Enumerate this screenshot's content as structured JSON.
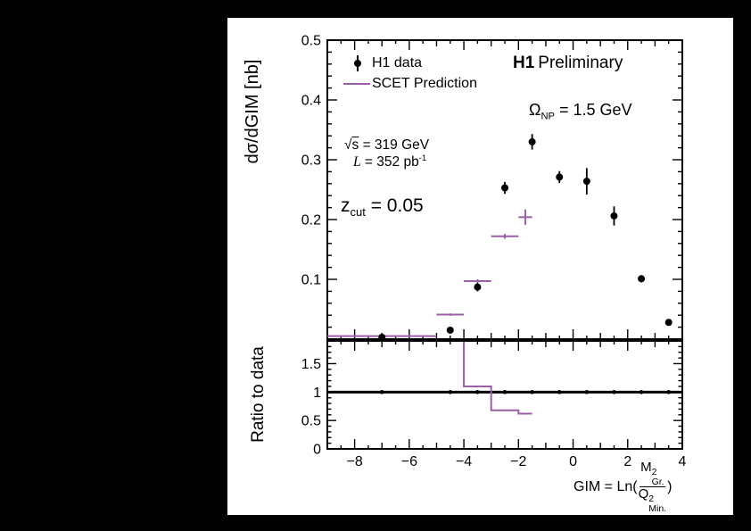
{
  "colors": {
    "background": "#000000",
    "canvas": "#ffffff",
    "data_points": "#000000",
    "scet_line": "#9a5fa5"
  },
  "titles": {
    "experiment": "H1",
    "status": "Preliminary"
  },
  "legend": {
    "data_label": "H1 data",
    "scet_label": "SCET Prediction"
  },
  "annotations": {
    "omega_symbol": "Ω",
    "omega_sub": "NP",
    "omega_value": " = 1.5 GeV",
    "sqrt_symbol": "√",
    "sqrt_arg": "s",
    "sqrt_value": " = 319 GeV",
    "lumi_symbol": "L",
    "lumi_value": " = 352 pb",
    "lumi_sup": "-1",
    "zcut_symbol": "z",
    "zcut_sub": "cut",
    "zcut_value": " = 0.05"
  },
  "xaxis_label": {
    "prefix": "GIM = Ln(",
    "num_base": "M",
    "num_sup": "2",
    "num_sub": "Gr.",
    "den_base": "Q",
    "den_sup": "2",
    "den_sub": "Min.",
    "suffix": ")"
  },
  "chart_data": {
    "type": "scatter",
    "title": "H1 Preliminary",
    "xlabel": "GIM = Ln(M^2_Gr. / Q^2_Min.)",
    "ylabel": "dσ/dGIM [nb]",
    "xlim": [
      -9,
      4
    ],
    "main_ylim": [
      0,
      0.5
    ],
    "xticks": {
      "major": [
        -8,
        -6,
        -4,
        -2,
        0,
        2,
        4
      ],
      "labels": [
        "−8",
        "−6",
        "−4",
        "−2",
        "0",
        "2",
        "4"
      ],
      "medium_step": 1,
      "minor_step": 0.5
    },
    "main_yticks": {
      "major": [
        0.1,
        0.2,
        0.3,
        0.4,
        0.5
      ],
      "labels": [
        "0.1",
        "0.2",
        "0.3",
        "0.4",
        "0.5"
      ],
      "minor_step": 0.02
    },
    "grid": false,
    "legend_position": "top-left",
    "series": [
      {
        "name": "H1 data",
        "type": "points",
        "marker": "circle",
        "color": "#000000",
        "x": [
          -7,
          -4.5,
          -3.5,
          -2.5,
          -1.5,
          -0.5,
          0.5,
          1.5,
          2.5,
          3.5
        ],
        "y": [
          0.003,
          0.015,
          0.087,
          0.253,
          0.33,
          0.271,
          0.264,
          0.206,
          0.101,
          0.028
        ],
        "yerr": [
          0.004,
          0.004,
          0.007,
          0.01,
          0.013,
          0.01,
          0.022,
          0.016,
          0.006,
          0.005
        ]
      },
      {
        "name": "SCET Prediction",
        "type": "hist-steps",
        "color": "#9a5fa5",
        "bins": [
          [
            -9,
            -5
          ],
          [
            -5,
            -4
          ],
          [
            -4,
            -3
          ],
          [
            -3,
            -2
          ],
          [
            -2,
            -1.5
          ]
        ],
        "y": [
          0.005,
          0.041,
          0.097,
          0.172,
          0.204
        ],
        "yerr": [
          0.001,
          0.002,
          0.003,
          0.004,
          0.013
        ]
      }
    ],
    "ratio_panel": {
      "ylabel": "Ratio to data",
      "ylim": [
        0,
        1.9
      ],
      "yticks": {
        "major": [
          0,
          0.5,
          1,
          1.5
        ],
        "labels": [
          "0",
          "0.5",
          "1",
          "1.5"
        ],
        "minor_step": 0.1
      },
      "reference_line_y": 1,
      "marker_x": [
        -7,
        -4.5,
        -3.5,
        -2.5,
        -1.5,
        -0.5,
        0.5,
        1.5,
        2.5,
        3.5
      ],
      "scet_ratio": {
        "entry_x": -4,
        "steps": [
          {
            "x1": -4,
            "x2": -3,
            "r": 1.1
          },
          {
            "x1": -3,
            "x2": -2,
            "r": 0.68
          },
          {
            "x1": -2,
            "x2": -1.5,
            "r": 0.62
          }
        ]
      }
    }
  }
}
